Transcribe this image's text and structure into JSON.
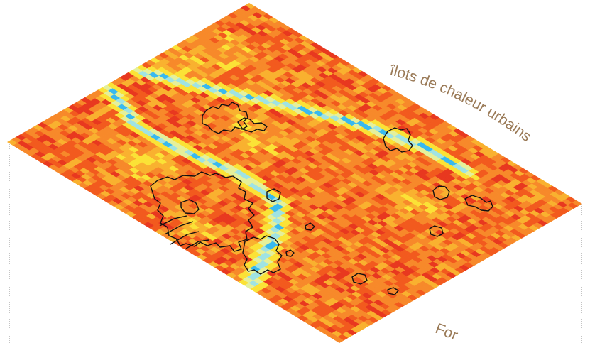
{
  "map": {
    "labels": {
      "urban_heat_islands": "îlots de chaleur urbains",
      "partial_bottom": "For"
    },
    "palette": {
      "deep_red": "#e8381f",
      "red_orange": "#f25a1e",
      "orange": "#f7892a",
      "amber": "#f9b12f",
      "yellow": "#fbe236",
      "pale_yellow": "#e5f09a",
      "light_cyan": "#9fe3e3",
      "cyan": "#38b9ef",
      "outline": "#111111",
      "frame_line": "#8a8a8a",
      "label_color": "#9a7a57"
    }
  }
}
